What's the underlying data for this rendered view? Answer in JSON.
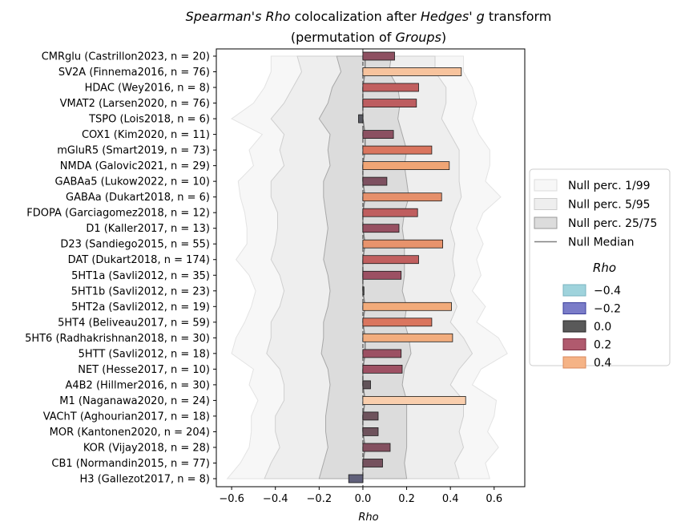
{
  "chart_data": {
    "type": "bar",
    "orientation": "horizontal",
    "title_line1_parts": [
      {
        "text": "Spearman's Rho",
        "italic": true
      },
      {
        "text": " colocalization after ",
        "italic": false
      },
      {
        "text": "Hedges' g",
        "italic": true
      },
      {
        "text": " transform",
        "italic": false
      }
    ],
    "title_line2_parts": [
      {
        "text": "(permutation of ",
        "italic": false
      },
      {
        "text": "Groups",
        "italic": true
      },
      {
        "text": ")",
        "italic": false
      }
    ],
    "xlabel": "Rho",
    "xlim": [
      -0.67,
      0.74
    ],
    "xticks": [
      -0.6,
      -0.4,
      -0.2,
      0.0,
      0.2,
      0.4,
      0.6
    ],
    "xtick_labels": [
      "−0.6",
      "−0.4",
      "−0.2",
      "0.0",
      "0.2",
      "0.4",
      "0.6"
    ],
    "grid": false,
    "legend_position": "right-outside",
    "categories": [
      "CMRglu (Castrillon2023, n = 20)",
      "SV2A (Finnema2016, n = 76)",
      "HDAC (Wey2016, n = 8)",
      "VMAT2 (Larsen2020, n = 76)",
      "TSPO (Lois2018, n = 6)",
      "COX1 (Kim2020, n = 11)",
      "mGluR5 (Smart2019, n = 73)",
      "NMDA (Galovic2021, n = 29)",
      "GABAa5 (Lukow2022, n = 10)",
      "GABAa (Dukart2018, n = 6)",
      "FDOPA (Garciagomez2018, n = 12)",
      "D1 (Kaller2017, n = 13)",
      "D23 (Sandiego2015, n = 55)",
      "DAT (Dukart2018, n = 174)",
      "5HT1a (Savli2012, n = 35)",
      "5HT1b (Savli2012, n = 23)",
      "5HT2a (Savli2012, n = 19)",
      "5HT4 (Beliveau2017, n = 59)",
      "5HT6 (Radhakrishnan2018, n = 30)",
      "5HTT (Savli2012, n = 18)",
      "NET (Hesse2017, n = 10)",
      "A4B2 (Hillmer2016, n = 30)",
      "M1 (Naganawa2020, n = 24)",
      "VAChT (Aghourian2017, n = 18)",
      "MOR (Kantonen2020, n = 204)",
      "KOR (Vijay2018, n = 28)",
      "CB1 (Normandin2015, n = 77)",
      "H3 (Gallezot2017, n = 8)"
    ],
    "values": [
      0.145,
      0.45,
      0.255,
      0.245,
      -0.02,
      0.14,
      0.315,
      0.395,
      0.11,
      0.36,
      0.25,
      0.165,
      0.365,
      0.255,
      0.175,
      0.005,
      0.405,
      0.315,
      0.41,
      0.175,
      0.18,
      0.035,
      0.47,
      0.07,
      0.07,
      0.125,
      0.09,
      -0.065
    ],
    "null_p1": [
      -0.42,
      -0.42,
      -0.45,
      -0.5,
      -0.6,
      -0.46,
      -0.52,
      -0.5,
      -0.57,
      -0.56,
      -0.54,
      -0.53,
      -0.53,
      -0.58,
      -0.52,
      -0.49,
      -0.51,
      -0.54,
      -0.58,
      -0.6,
      -0.5,
      -0.52,
      -0.48,
      -0.51,
      -0.51,
      -0.52,
      -0.56,
      -0.62
    ],
    "null_p99": [
      0.46,
      0.46,
      0.5,
      0.52,
      0.5,
      0.53,
      0.58,
      0.58,
      0.56,
      0.63,
      0.55,
      0.52,
      0.55,
      0.52,
      0.54,
      0.5,
      0.56,
      0.52,
      0.62,
      0.66,
      0.54,
      0.5,
      0.61,
      0.6,
      0.57,
      0.62,
      0.56,
      0.58
    ],
    "null_p5": [
      -0.3,
      -0.28,
      -0.32,
      -0.36,
      -0.42,
      -0.36,
      -0.38,
      -0.36,
      -0.42,
      -0.42,
      -0.39,
      -0.39,
      -0.4,
      -0.42,
      -0.38,
      -0.36,
      -0.38,
      -0.42,
      -0.42,
      -0.44,
      -0.38,
      -0.36,
      -0.36,
      -0.4,
      -0.4,
      -0.38,
      -0.42,
      -0.45
    ],
    "null_p95": [
      0.33,
      0.33,
      0.38,
      0.38,
      0.36,
      0.4,
      0.44,
      0.44,
      0.44,
      0.45,
      0.42,
      0.4,
      0.42,
      0.41,
      0.42,
      0.4,
      0.43,
      0.4,
      0.46,
      0.5,
      0.44,
      0.4,
      0.46,
      0.46,
      0.44,
      0.46,
      0.42,
      0.44
    ],
    "null_p25": [
      -0.12,
      -0.1,
      -0.14,
      -0.16,
      -0.2,
      -0.15,
      -0.16,
      -0.15,
      -0.18,
      -0.18,
      -0.17,
      -0.16,
      -0.17,
      -0.18,
      -0.16,
      -0.15,
      -0.16,
      -0.18,
      -0.18,
      -0.19,
      -0.16,
      -0.15,
      -0.16,
      -0.17,
      -0.17,
      -0.16,
      -0.18,
      -0.2
    ],
    "null_p75": [
      0.13,
      0.12,
      0.16,
      0.17,
      0.16,
      0.18,
      0.2,
      0.19,
      0.2,
      0.21,
      0.19,
      0.18,
      0.19,
      0.19,
      0.19,
      0.18,
      0.2,
      0.19,
      0.21,
      0.22,
      0.19,
      0.18,
      0.2,
      0.2,
      0.2,
      0.2,
      0.19,
      0.2
    ],
    "null_median": [
      0.01,
      0.01,
      0.0,
      0.0,
      0.0,
      0.01,
      0.01,
      0.0,
      0.0,
      0.01,
      0.0,
      0.0,
      0.01,
      0.0,
      0.0,
      0.0,
      0.01,
      0.0,
      0.01,
      0.01,
      0.0,
      0.0,
      0.01,
      0.0,
      0.0,
      0.01,
      0.0,
      0.0
    ],
    "legend": {
      "null_items": [
        {
          "label": "Null perc. 1/99",
          "color": "#f7f7f7",
          "edge": "#dddddd"
        },
        {
          "label": "Null perc. 5/95",
          "color": "#eeeeee",
          "edge": "#cccccc"
        },
        {
          "label": "Null perc. 25/75",
          "color": "#dcdcdc",
          "edge": "#999999"
        },
        {
          "label": "Null Median",
          "color": "#808080",
          "line": true
        }
      ],
      "rho_title": "Rho",
      "rho_items": [
        {
          "label": "−0.4",
          "color": "#9fd3dc",
          "edge": "#7ab3bf"
        },
        {
          "label": "−0.2",
          "color": "#7a7cc8",
          "edge": "#3b3f9c"
        },
        {
          "label": "0.0",
          "color": "#595959",
          "edge": "#262626"
        },
        {
          "label": "0.2",
          "color": "#b05a6e",
          "edge": "#7a2d40"
        },
        {
          "label": "0.4",
          "color": "#f5b386",
          "edge": "#d98a5c"
        }
      ]
    },
    "colors": {
      "band_p1": "#f7f7f7",
      "band_p1_edge": "#e3e3e3",
      "band_p5": "#eeeeee",
      "band_p5_edge": "#cfcfcf",
      "band_p25": "#dcdcdc",
      "band_p25_edge": "#a8a8a8",
      "median_line": "#808080",
      "zero_line": "#555555",
      "bar_edge": "#1a1a1a"
    }
  }
}
